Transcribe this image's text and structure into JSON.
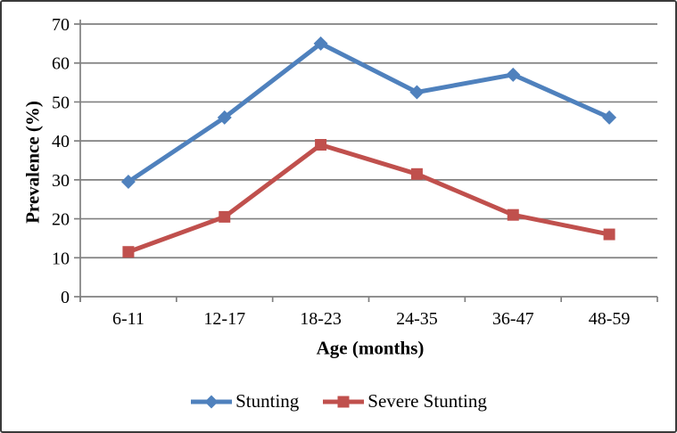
{
  "figure": {
    "background": "#ffffff",
    "border_color": "#3a3a3a"
  },
  "chart_data": {
    "type": "line",
    "categories": [
      "6-11",
      "12-17",
      "18-23",
      "24-35",
      "36-47",
      "48-59"
    ],
    "series": [
      {
        "name": "Stunting",
        "values": [
          29.5,
          46,
          65,
          52.5,
          57,
          46
        ],
        "color": "#4F81BD",
        "marker": "diamond"
      },
      {
        "name": "Severe Stunting",
        "values": [
          11.5,
          20.5,
          39,
          31.5,
          21,
          16
        ],
        "color": "#C0504D",
        "marker": "square"
      }
    ],
    "xlabel": "Age (months)",
    "ylabel": "Prevalence (%)",
    "ylim": [
      0,
      70
    ],
    "yticks": [
      0,
      10,
      20,
      30,
      40,
      50,
      60,
      70
    ],
    "grid": "horizontal",
    "legend_position": "bottom",
    "gridline_color": "#808080",
    "axis_color": "#808080",
    "text_color": "#000000"
  }
}
